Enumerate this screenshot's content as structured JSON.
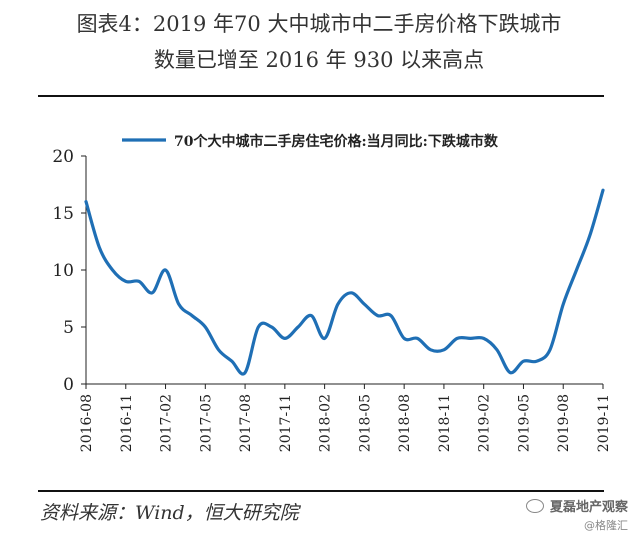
{
  "header": {
    "title_line1": "图表4：2019 年70 大中城市中二手房价格下跌城市",
    "title_line2": "数量已增至 2016 年 930 以来高点"
  },
  "footer": {
    "source": "资料来源：Wind，恒大研究院",
    "watermark_name": "夏磊地产观察",
    "watermark_handle": "@格隆汇"
  },
  "colors": {
    "series": "#1f6fb5",
    "axis": "#222222"
  },
  "chart_data": {
    "type": "line",
    "legend": {
      "placement": "top-left"
    },
    "grid": false,
    "ylim": [
      0,
      20
    ],
    "yticks": [
      0,
      5,
      10,
      15,
      20
    ],
    "xticks": [
      "2016-08",
      "2016-11",
      "2017-02",
      "2017-05",
      "2017-08",
      "2017-11",
      "2018-02",
      "2018-05",
      "2018-08",
      "2018-11",
      "2019-02",
      "2019-05",
      "2019-08",
      "2019-11"
    ],
    "series": [
      {
        "name": "70个大中城市二手房住宅价格:当月同比:下跌城市数",
        "x": [
          "2016-08",
          "2016-09",
          "2016-10",
          "2016-11",
          "2016-12",
          "2017-01",
          "2017-02",
          "2017-03",
          "2017-04",
          "2017-05",
          "2017-06",
          "2017-07",
          "2017-08",
          "2017-09",
          "2017-10",
          "2017-11",
          "2017-12",
          "2018-01",
          "2018-02",
          "2018-03",
          "2018-04",
          "2018-05",
          "2018-06",
          "2018-07",
          "2018-08",
          "2018-09",
          "2018-10",
          "2018-11",
          "2018-12",
          "2019-01",
          "2019-02",
          "2019-03",
          "2019-04",
          "2019-05",
          "2019-06",
          "2019-07",
          "2019-08",
          "2019-09",
          "2019-10",
          "2019-11"
        ],
        "values": [
          16,
          12,
          10,
          9,
          9,
          8,
          10,
          7,
          6,
          5,
          3,
          2,
          1,
          5,
          5,
          4,
          5,
          6,
          4,
          7,
          8,
          7,
          6,
          6,
          4,
          4,
          3,
          3,
          4,
          4,
          4,
          3,
          1,
          2,
          2,
          3,
          7,
          10,
          13,
          17
        ]
      }
    ]
  }
}
